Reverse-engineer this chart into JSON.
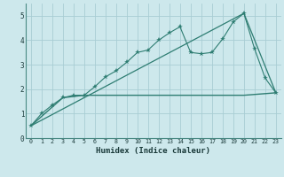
{
  "xlabel": "Humidex (Indice chaleur)",
  "bg_color": "#cde8ec",
  "grid_color": "#a8cdd4",
  "line_color": "#2e7d72",
  "xlim": [
    -0.5,
    23.5
  ],
  "ylim": [
    0,
    5.5
  ],
  "xticks": [
    0,
    1,
    2,
    3,
    4,
    5,
    6,
    7,
    8,
    9,
    10,
    11,
    12,
    13,
    14,
    15,
    16,
    17,
    18,
    19,
    20,
    21,
    22,
    23
  ],
  "yticks": [
    0,
    1,
    2,
    3,
    4,
    5
  ],
  "line1_x": [
    0,
    1,
    2,
    3,
    4,
    5,
    6,
    7,
    8,
    9,
    10,
    11,
    12,
    13,
    14,
    15,
    16,
    17,
    18,
    19,
    20,
    21,
    22,
    23
  ],
  "line1_y": [
    0.5,
    1.0,
    1.35,
    1.65,
    1.75,
    1.75,
    2.1,
    2.5,
    2.75,
    3.1,
    3.5,
    3.6,
    4.0,
    4.3,
    4.55,
    3.5,
    3.45,
    3.5,
    4.05,
    4.75,
    5.1,
    3.65,
    2.45,
    1.85
  ],
  "line2_x": [
    0,
    20,
    23
  ],
  "line2_y": [
    0.5,
    5.1,
    1.85
  ],
  "line3_x": [
    0,
    3,
    5,
    19,
    20,
    23
  ],
  "line3_y": [
    0.5,
    1.65,
    1.75,
    1.75,
    1.75,
    1.85
  ]
}
